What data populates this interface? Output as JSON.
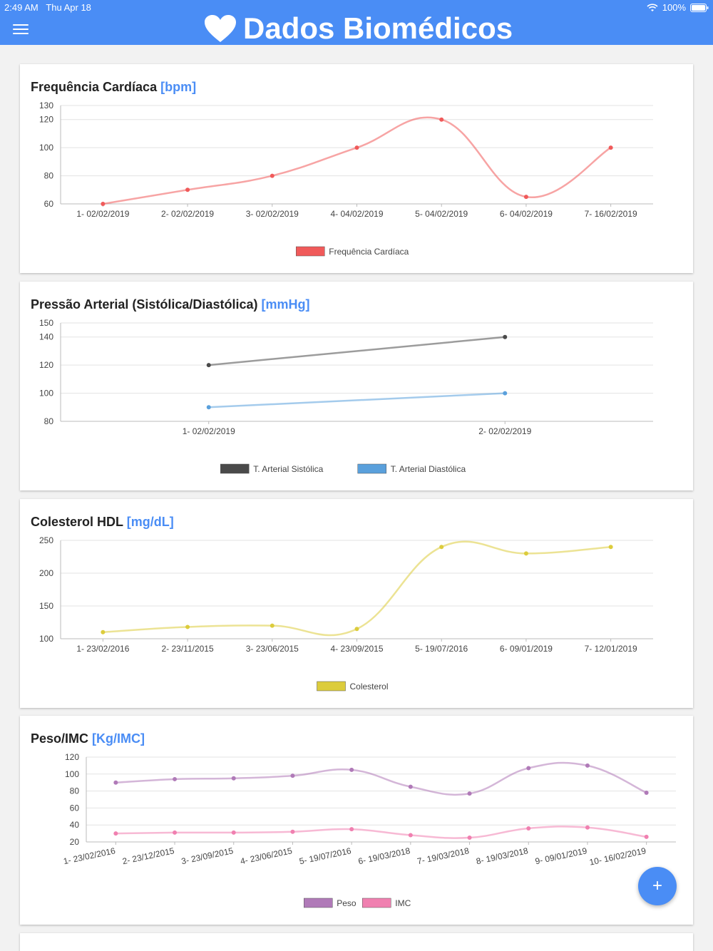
{
  "status": {
    "time": "2:49 AM",
    "date": "Thu Apr 18",
    "battery": "100%"
  },
  "header": {
    "title": "Dados Biomédicos"
  },
  "fab": {
    "label": "+"
  },
  "colors": {
    "accent": "#4a8df5"
  },
  "cards": [
    {
      "title": "Frequência Cardíaca",
      "unit": "[bpm]"
    },
    {
      "title": "Pressão Arterial (Sistólica/Diastólica)",
      "unit": "[mmHg]"
    },
    {
      "title": "Colesterol HDL",
      "unit": "[mg/dL]"
    },
    {
      "title": "Peso/IMC",
      "unit": "[Kg/IMC]"
    }
  ],
  "chart_data": [
    {
      "type": "line",
      "categories": [
        "1- 02/02/2019",
        "2- 02/02/2019",
        "3- 02/02/2019",
        "4- 04/02/2019",
        "5- 04/02/2019",
        "6- 04/02/2019",
        "7- 16/02/2019"
      ],
      "yticks": [
        60,
        80,
        100,
        120,
        130
      ],
      "ylim": [
        60,
        130
      ],
      "smooth": true,
      "rotate": false,
      "series": [
        {
          "name": "Frequência Cardíaca",
          "values": [
            60,
            70,
            80,
            100,
            120,
            65,
            100
          ],
          "color": "#f05a5a"
        }
      ]
    },
    {
      "type": "line",
      "categories": [
        "1- 02/02/2019",
        "2- 02/02/2019"
      ],
      "yticks": [
        80,
        100,
        120,
        140,
        150
      ],
      "ylim": [
        80,
        150
      ],
      "smooth": false,
      "rotate": false,
      "series": [
        {
          "name": "T. Arterial Sistólica",
          "values": [
            120,
            140
          ],
          "color": "#4a4a4a"
        },
        {
          "name": "T. Arterial Diastólica",
          "values": [
            90,
            100
          ],
          "color": "#5aa0dc"
        }
      ]
    },
    {
      "type": "line",
      "categories": [
        "1- 23/02/2016",
        "2- 23/11/2015",
        "3- 23/06/2015",
        "4- 23/09/2015",
        "5- 19/07/2016",
        "6- 09/01/2019",
        "7- 12/01/2019"
      ],
      "yticks": [
        100,
        150,
        200,
        250
      ],
      "ylim": [
        100,
        250
      ],
      "smooth": true,
      "rotate": false,
      "series": [
        {
          "name": "Colesterol",
          "values": [
            110,
            118,
            120,
            115,
            240,
            230,
            240
          ],
          "color": "#dccc3c"
        }
      ]
    },
    {
      "type": "line",
      "categories": [
        "1- 23/02/2016",
        "2- 23/12/2015",
        "3- 23/09/2015",
        "4- 23/06/2015",
        "5- 19/07/2016",
        "6- 19/03/2018",
        "7- 19/03/2018",
        "8- 19/03/2018",
        "9- 09/01/2019",
        "10- 16/02/2019"
      ],
      "yticks": [
        20,
        40,
        60,
        80,
        100,
        120
      ],
      "ylim": [
        20,
        120
      ],
      "smooth": true,
      "rotate": true,
      "series": [
        {
          "name": "Peso",
          "values": [
            90,
            94,
            95,
            98,
            105,
            85,
            77,
            107,
            110,
            78
          ],
          "color": "#b07ab8"
        },
        {
          "name": "IMC",
          "values": [
            30,
            31,
            31,
            32,
            35,
            28,
            25,
            36,
            37,
            26
          ],
          "color": "#f080b0"
        }
      ]
    }
  ]
}
